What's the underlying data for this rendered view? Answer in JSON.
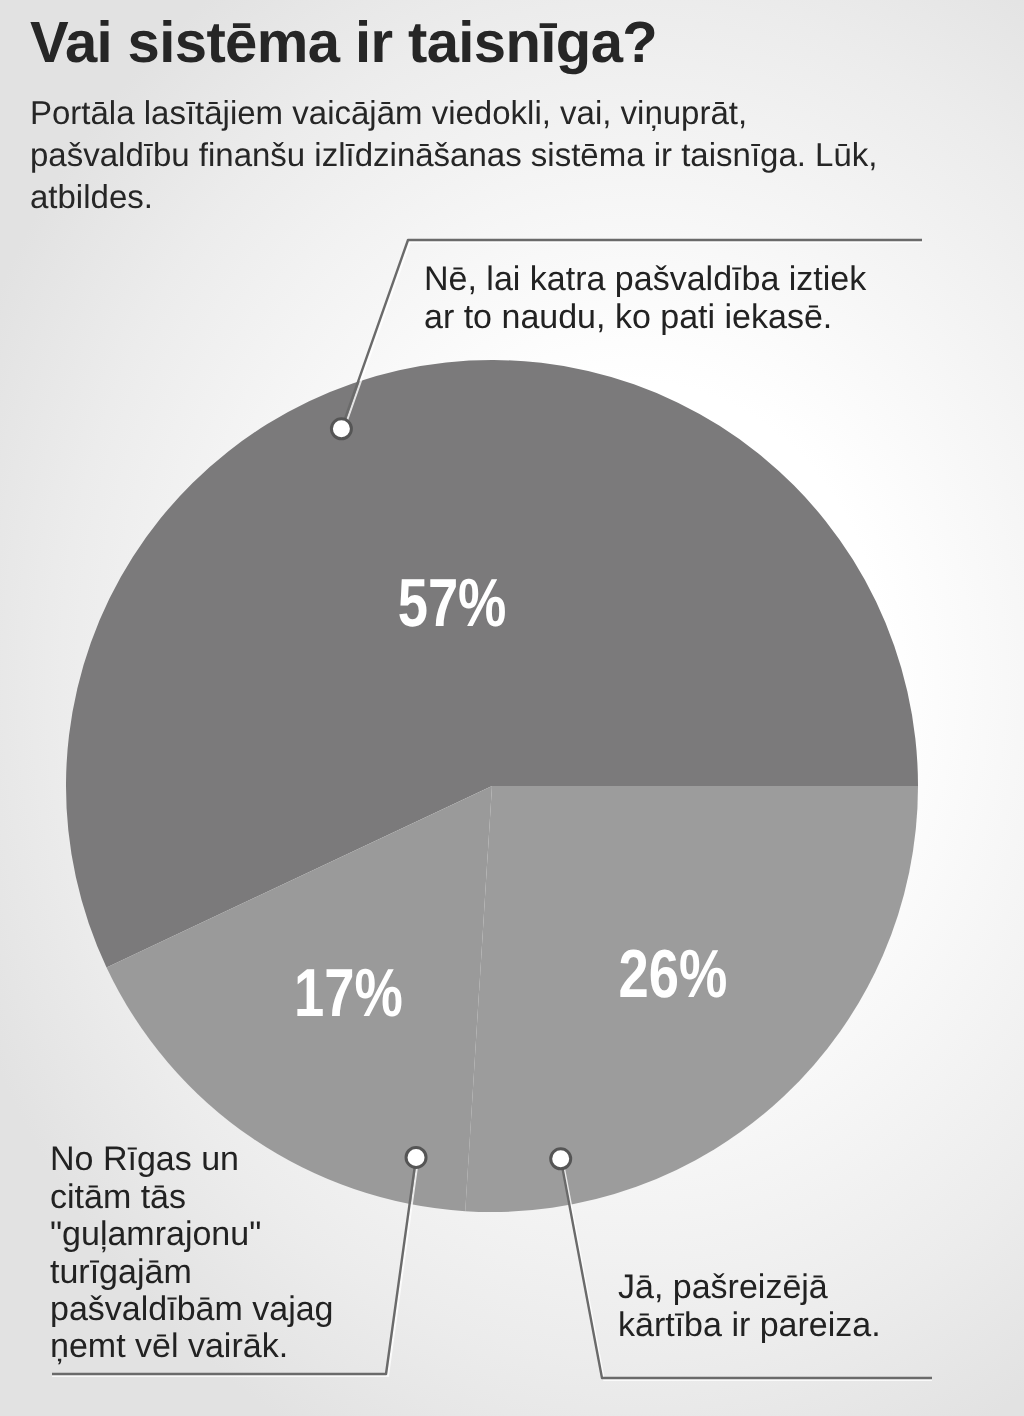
{
  "chart_data": {
    "type": "pie",
    "title": "Vai sistēma ir taisnīga?",
    "subtitle": "Portāla lasītājiem vaicājām viedokli, vai, viņuprāt, pašvaldību finanšu izlīdzināšanas sistēma ir taisnīga. Lūk, atbildes.",
    "categories": [
      "Nē, lai katra pašvaldība iztiek ar to naudu, ko pati iekasē.",
      "Jā, pašreizējā kārtība ir pareiza.",
      "No Rīgas un citām tās \"guļamrajonu\" turīgajām pašvaldībām vajag ņemt vēl vairāk."
    ],
    "values": [
      57,
      26,
      17
    ],
    "colors": [
      "#7b7a7b",
      "#9c9c9c",
      "#9a9a9a"
    ],
    "value_labels": [
      "57%",
      "26%",
      "17%"
    ],
    "legend": false
  }
}
